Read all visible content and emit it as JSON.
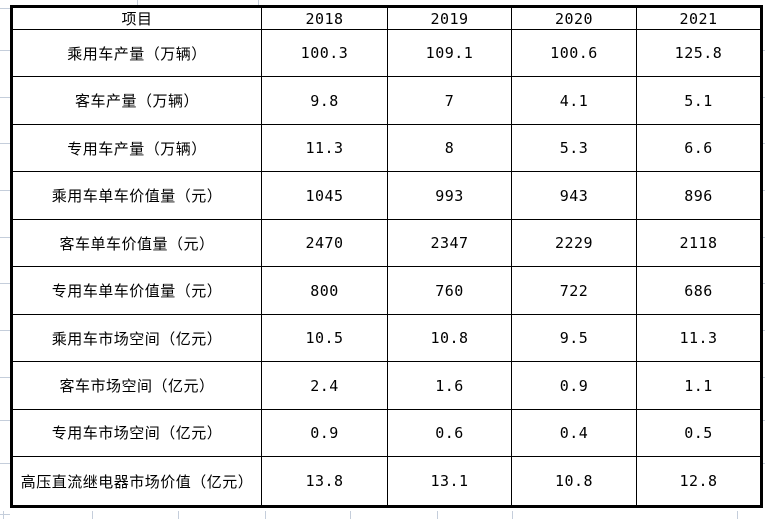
{
  "chart_data": {
    "type": "table",
    "title": "",
    "columns": [
      "项目",
      "2018",
      "2019",
      "2020",
      "2021"
    ],
    "rows": [
      {
        "label": "乘用车产量（万辆）",
        "values": [
          "100.3",
          "109.1",
          "100.6",
          "125.8"
        ]
      },
      {
        "label": "客车产量（万辆）",
        "values": [
          "9.8",
          "7",
          "4.1",
          "5.1"
        ]
      },
      {
        "label": "专用车产量（万辆）",
        "values": [
          "11.3",
          "8",
          "5.3",
          "6.6"
        ]
      },
      {
        "label": "乘用车单车价值量（元）",
        "values": [
          "1045",
          "993",
          "943",
          "896"
        ]
      },
      {
        "label": "客车单车价值量（元）",
        "values": [
          "2470",
          "2347",
          "2229",
          "2118"
        ]
      },
      {
        "label": "专用车单车价值量（元）",
        "values": [
          "800",
          "760",
          "722",
          "686"
        ]
      },
      {
        "label": "乘用车市场空间（亿元）",
        "values": [
          "10.5",
          "10.8",
          "9.5",
          "11.3"
        ]
      },
      {
        "label": "客车市场空间（亿元）",
        "values": [
          "2.4",
          "1.6",
          "0.9",
          "1.1"
        ]
      },
      {
        "label": "专用车市场空间（亿元）",
        "values": [
          "0.9",
          "0.6",
          "0.4",
          "0.5"
        ]
      },
      {
        "label": "高压直流继电器市场价值（亿元）",
        "values": [
          "13.8",
          "13.1",
          "10.8",
          "12.8"
        ]
      }
    ]
  },
  "colors": {
    "table_border": "#000000",
    "cell_background": "#ffffff",
    "text": "#000000",
    "sheet_gridline": "#c5cedb"
  }
}
